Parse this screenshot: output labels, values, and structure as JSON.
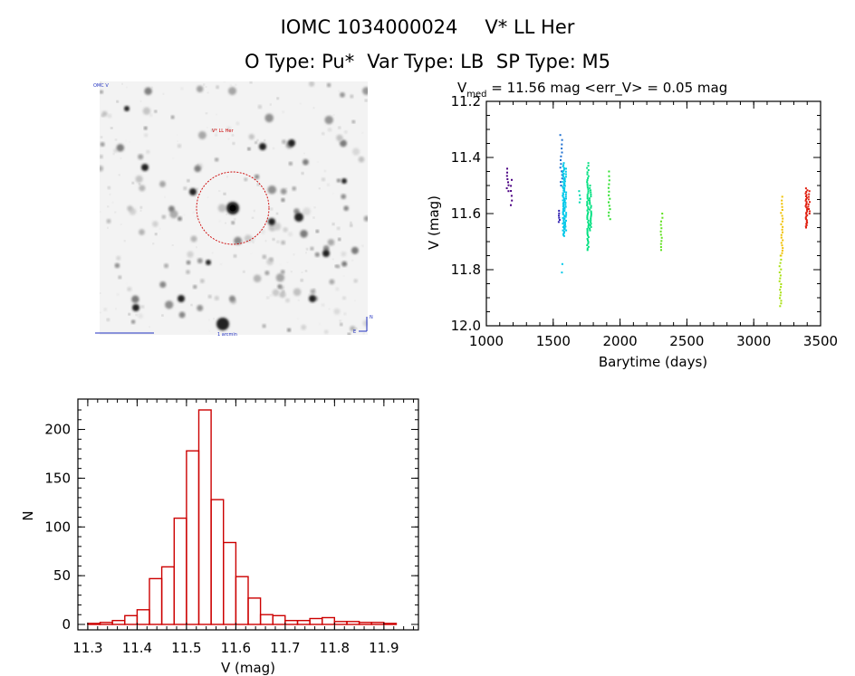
{
  "title_line1": {
    "object_id": "IOMC 1034000024",
    "star_name": "V* LL Her"
  },
  "title_line2": {
    "o_type": "O Type: Pu*",
    "var_type": "Var Type: LB",
    "sp_type": "SP Type: M5"
  },
  "finder": {
    "label_top_left": "OMC V",
    "label_mid": "V* LL Her",
    "label_bottom": "1 arcmin",
    "compass_n": "N",
    "compass_e": "E"
  },
  "chart_data": [
    {
      "type": "scatter",
      "name": "light-curve",
      "title_main": "V",
      "title_sub": "med",
      "title_rest": " = 11.56 mag <err_V> = 0.05 mag",
      "xlabel": "Barytime (days)",
      "ylabel": "V (mag)",
      "xlim": [
        1000,
        3500
      ],
      "ylim": [
        11.2,
        12.0
      ],
      "y_inverted": true,
      "xticks": [
        1000,
        1500,
        2000,
        2500,
        3000,
        3500
      ],
      "yticks": [
        11.2,
        11.4,
        11.6,
        11.8,
        12.0
      ],
      "ytick_labels": [
        "11.2",
        "11.4",
        "11.6",
        "11.8",
        "12.0"
      ],
      "groups": [
        {
          "t": 1160,
          "vmin": 11.44,
          "vmax": 11.52,
          "color": "#4b0082",
          "n": 8
        },
        {
          "t": 1190,
          "vmin": 11.48,
          "vmax": 11.57,
          "color": "#4b0082",
          "n": 6
        },
        {
          "t": 1545,
          "vmin": 11.59,
          "vmax": 11.63,
          "color": "#2f1fb0",
          "n": 6
        },
        {
          "t": 1560,
          "vmin": 11.32,
          "vmax": 11.5,
          "color": "#1e6fd0",
          "n": 14
        },
        {
          "t": 1578,
          "vmin": 11.42,
          "vmax": 11.68,
          "color": "#00c8e8",
          "n": 60
        },
        {
          "t": 1590,
          "vmin": 11.44,
          "vmax": 11.66,
          "color": "#00c8e8",
          "n": 30
        },
        {
          "t": 1572,
          "vmin": 11.78,
          "vmax": 11.81,
          "color": "#00c8e8",
          "n": 2
        },
        {
          "t": 1700,
          "vmin": 11.52,
          "vmax": 11.56,
          "color": "#00d8b0",
          "n": 4
        },
        {
          "t": 1760,
          "vmin": 11.42,
          "vmax": 11.73,
          "color": "#00e080",
          "n": 50
        },
        {
          "t": 1778,
          "vmin": 11.5,
          "vmax": 11.66,
          "color": "#00e080",
          "n": 25
        },
        {
          "t": 1920,
          "vmin": 11.45,
          "vmax": 11.62,
          "color": "#30e030",
          "n": 14
        },
        {
          "t": 2310,
          "vmin": 11.6,
          "vmax": 11.73,
          "color": "#60e020",
          "n": 12
        },
        {
          "t": 3200,
          "vmin": 11.75,
          "vmax": 11.93,
          "color": "#a8e010",
          "n": 18
        },
        {
          "t": 3210,
          "vmin": 11.54,
          "vmax": 11.75,
          "color": "#f0c000",
          "n": 22
        },
        {
          "t": 3395,
          "vmin": 11.51,
          "vmax": 11.65,
          "color": "#e02010",
          "n": 30
        },
        {
          "t": 3412,
          "vmin": 11.52,
          "vmax": 11.6,
          "color": "#e02010",
          "n": 10
        }
      ]
    },
    {
      "type": "bar",
      "name": "histogram",
      "xlabel": "V (mag)",
      "ylabel": "N",
      "xlim": [
        11.28,
        11.97
      ],
      "ylim": [
        0,
        230
      ],
      "xticks": [
        11.3,
        11.4,
        11.5,
        11.6,
        11.7,
        11.8,
        11.9
      ],
      "xtick_labels": [
        "11.3",
        "11.4",
        "11.5",
        "11.6",
        "11.7",
        "11.8",
        "11.9"
      ],
      "yticks": [
        0,
        50,
        100,
        150,
        200
      ],
      "bin_width": 0.025,
      "bins_start": [
        11.3,
        11.325,
        11.35,
        11.375,
        11.4,
        11.425,
        11.45,
        11.475,
        11.5,
        11.525,
        11.55,
        11.575,
        11.6,
        11.625,
        11.65,
        11.675,
        11.7,
        11.725,
        11.75,
        11.775,
        11.8,
        11.825,
        11.85,
        11.875,
        11.9,
        11.925
      ],
      "values": [
        1,
        2,
        4,
        9,
        15,
        47,
        59,
        109,
        178,
        220,
        128,
        84,
        49,
        27,
        10,
        9,
        4,
        4,
        6,
        7,
        3,
        3,
        2,
        2,
        1,
        0
      ],
      "color": "#cc0000"
    }
  ]
}
